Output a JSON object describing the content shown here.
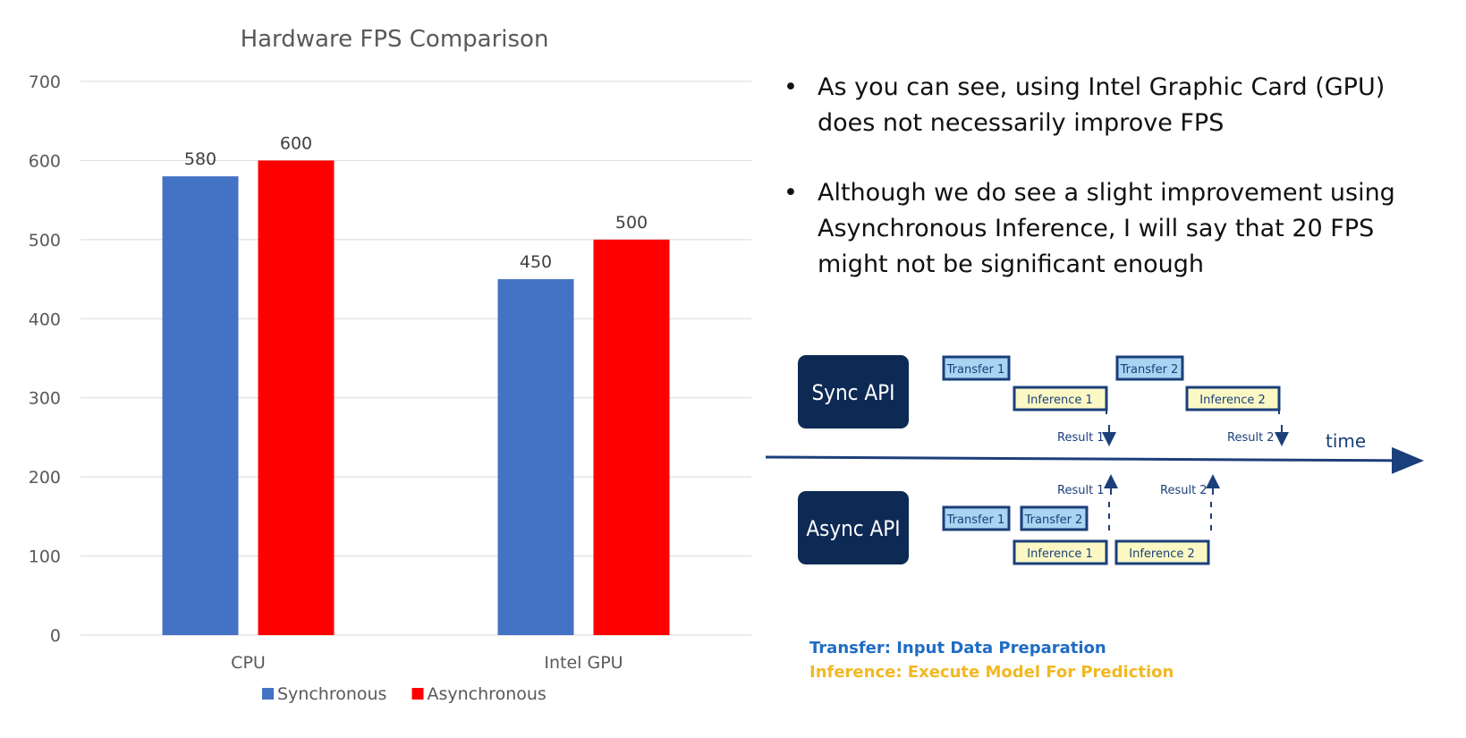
{
  "chart_data": {
    "type": "bar",
    "title": "Hardware FPS Comparison",
    "categories": [
      "CPU",
      "Intel GPU"
    ],
    "series": [
      {
        "name": "Synchronous",
        "values": [
          580,
          450
        ],
        "color": "#4472C4"
      },
      {
        "name": "Asynchronous",
        "values": [
          600,
          500
        ],
        "color": "#FF0000"
      }
    ],
    "ylim": [
      0,
      700
    ],
    "yticks": [
      0,
      100,
      200,
      300,
      400,
      500,
      600,
      700
    ],
    "grid": true,
    "legend": "bottom",
    "xlabel": "",
    "ylabel": ""
  },
  "bullets": [
    "As you can see, using Intel Graphic Card (GPU) does not necessarily improve FPS",
    "Although we do see a slight improvement using Asynchronous Inference, I will say that 20 FPS might not be significant enough"
  ],
  "diagram": {
    "sync_label": "Sync API",
    "async_label": "Async API",
    "time_label": "time",
    "transfer1": "Transfer 1",
    "transfer2": "Transfer 2",
    "inference1": "Inference 1",
    "inference2": "Inference 2",
    "result1": "Result 1",
    "result2": "Result 2",
    "colors": {
      "api_box": "#0D2A55",
      "transfer_fill": "#A9D4F2",
      "inference_fill": "#FBF8C4",
      "box_border": "#1B3F7A"
    }
  },
  "legend_text": {
    "transfer": "Transfer: Input Data Preparation",
    "inference": "Inference: Execute Model For Prediction"
  }
}
